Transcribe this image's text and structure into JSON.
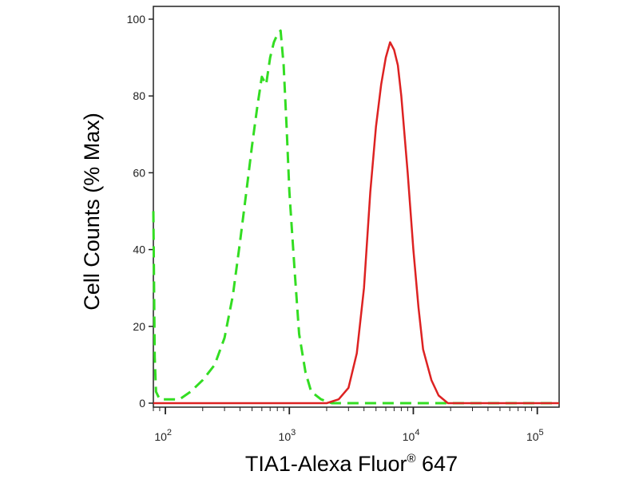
{
  "chart_data": {
    "type": "line",
    "title": "",
    "xlabel": "TIA1-Alexa Fluor",
    "xlabel_superscript": "®",
    "xlabel_suffix": " 647",
    "ylabel": "Cell Counts (% Max)",
    "x_scale": "log",
    "xlim": [
      80,
      150000
    ],
    "ylim": [
      0,
      100
    ],
    "y_ticks": [
      "0",
      "20",
      "40",
      "60",
      "80",
      "100"
    ],
    "x_ticks": [
      {
        "base": "10",
        "exp": "2"
      },
      {
        "base": "10",
        "exp": "3"
      },
      {
        "base": "10",
        "exp": "4"
      },
      {
        "base": "10",
        "exp": "5"
      }
    ],
    "grid": false,
    "legend": "none",
    "series": [
      {
        "color": "#33dd22",
        "style": "dashed",
        "points": [
          [
            80,
            50
          ],
          [
            82,
            12
          ],
          [
            84,
            3
          ],
          [
            90,
            1
          ],
          [
            100,
            1
          ],
          [
            130,
            1
          ],
          [
            160,
            3
          ],
          [
            200,
            6
          ],
          [
            250,
            10
          ],
          [
            300,
            17
          ],
          [
            350,
            28
          ],
          [
            400,
            42
          ],
          [
            450,
            55
          ],
          [
            500,
            67
          ],
          [
            550,
            77
          ],
          [
            600,
            85
          ],
          [
            650,
            83
          ],
          [
            700,
            90
          ],
          [
            750,
            94
          ],
          [
            800,
            96
          ],
          [
            850,
            97
          ],
          [
            900,
            88
          ],
          [
            950,
            72
          ],
          [
            1000,
            55
          ],
          [
            1100,
            35
          ],
          [
            1200,
            18
          ],
          [
            1350,
            8
          ],
          [
            1500,
            3
          ],
          [
            1800,
            1
          ],
          [
            2200,
            0
          ],
          [
            3000,
            0
          ],
          [
            10000,
            0
          ],
          [
            150000,
            0
          ]
        ]
      },
      {
        "color": "#dd2222",
        "style": "solid",
        "points": [
          [
            80,
            0
          ],
          [
            1000,
            0
          ],
          [
            2000,
            0
          ],
          [
            2500,
            1
          ],
          [
            3000,
            4
          ],
          [
            3500,
            13
          ],
          [
            4000,
            30
          ],
          [
            4500,
            55
          ],
          [
            5000,
            72
          ],
          [
            5500,
            83
          ],
          [
            6000,
            90
          ],
          [
            6500,
            94
          ],
          [
            7000,
            92
          ],
          [
            7500,
            88
          ],
          [
            8000,
            80
          ],
          [
            9000,
            60
          ],
          [
            10000,
            40
          ],
          [
            11000,
            25
          ],
          [
            12000,
            14
          ],
          [
            14000,
            6
          ],
          [
            16000,
            2
          ],
          [
            19000,
            0
          ],
          [
            30000,
            0
          ],
          [
            150000,
            0
          ]
        ]
      }
    ]
  }
}
